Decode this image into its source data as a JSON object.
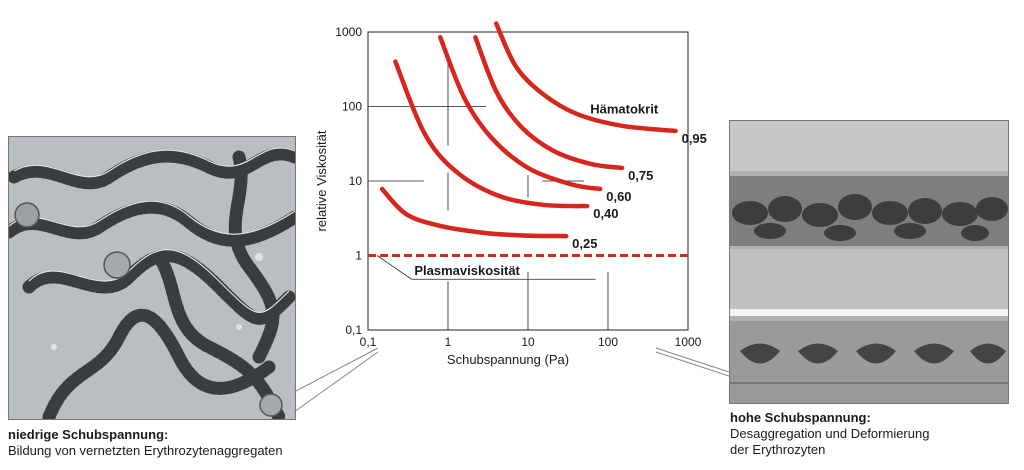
{
  "chart_data": {
    "type": "line",
    "title": "",
    "xlabel": "Schubspannung (Pa)",
    "ylabel": "relative Viskosität",
    "xscale": "log",
    "yscale": "log",
    "xlim": [
      0.1,
      1000
    ],
    "ylim": [
      0.1,
      1000
    ],
    "xticks": [
      "0,1",
      "1",
      "10",
      "100",
      "1000"
    ],
    "yticks": [
      "0,1",
      "1",
      "10",
      "100",
      "1000"
    ],
    "grid": "partial",
    "legend_title": "Hämatokrit",
    "series": [
      {
        "name": "0,25",
        "color": "#d7261e",
        "x": [
          0.15,
          0.3,
          0.8,
          3,
          10,
          30
        ],
        "y": [
          7.8,
          3.6,
          2.5,
          2.0,
          1.85,
          1.82
        ]
      },
      {
        "name": "0,40",
        "color": "#d7261e",
        "x": [
          0.22,
          0.5,
          1.2,
          4,
          15,
          55
        ],
        "y": [
          400,
          45,
          14,
          6.5,
          4.8,
          4.6
        ]
      },
      {
        "name": "0,60",
        "color": "#d7261e",
        "x": [
          0.8,
          1.6,
          3.5,
          10,
          35,
          80
        ],
        "y": [
          850,
          130,
          38,
          15,
          9,
          7.8
        ]
      },
      {
        "name": "0,75",
        "color": "#d7261e",
        "x": [
          2.2,
          4,
          8,
          20,
          60,
          150
        ],
        "y": [
          850,
          160,
          55,
          26,
          17,
          15
        ]
      },
      {
        "name": "0,95",
        "color": "#d7261e",
        "x": [
          4,
          7,
          15,
          40,
          150,
          700
        ],
        "y": [
          1300,
          350,
          150,
          80,
          55,
          47
        ]
      }
    ],
    "reference_line": {
      "name": "Plasmaviskosität",
      "y": 1,
      "color": "#d7261e",
      "style": "dashed"
    }
  },
  "captions": {
    "left": {
      "heading": "niedrige Schubspannung:",
      "text": "Bildung von vernetzten Erythrozytenaggregaten"
    },
    "right": {
      "heading": "hohe Schubspannung:",
      "text_line1": "Desaggregation und Deformierung",
      "text_line2": "der Erythrozyten"
    }
  },
  "images": {
    "left": "micrograph-rouleaux",
    "right": "micrograph-capillary"
  }
}
